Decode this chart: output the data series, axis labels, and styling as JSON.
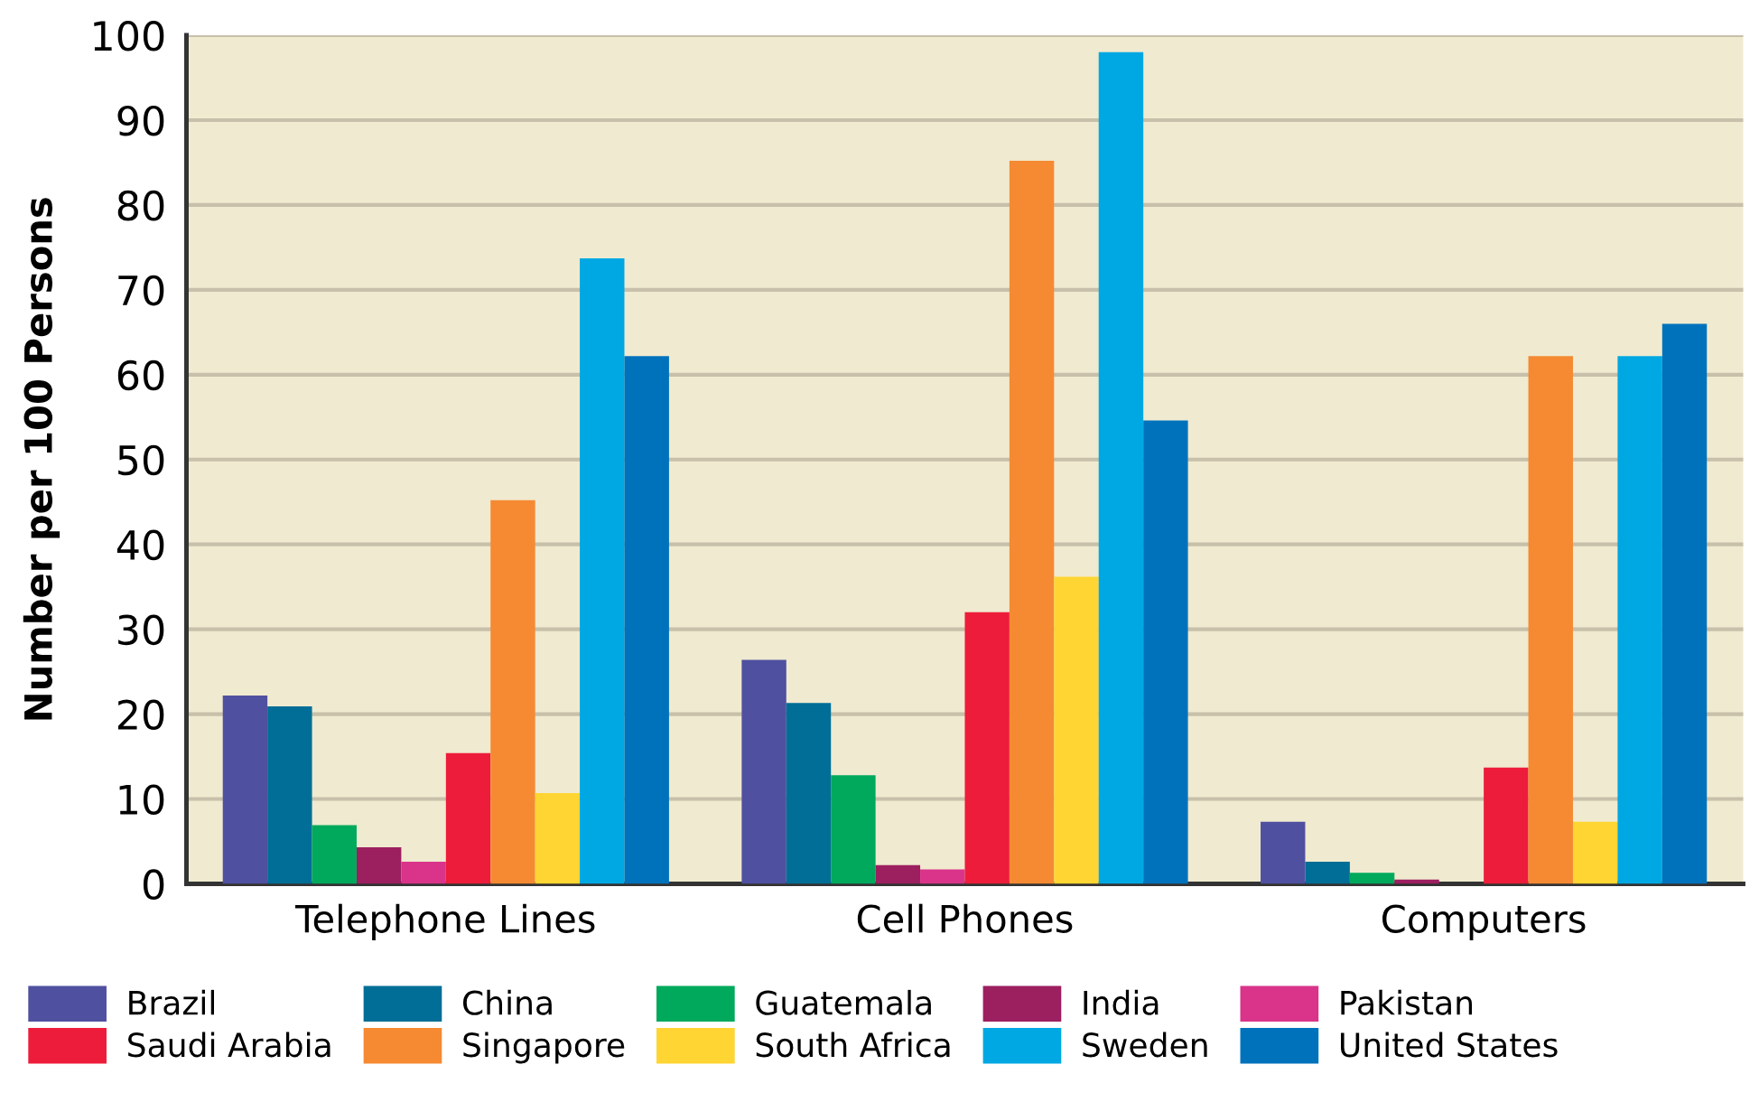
{
  "chart_data": {
    "type": "bar",
    "ylabel": "Number per 100 Persons",
    "categories": [
      "Telephone Lines",
      "Cell Phones",
      "Computers"
    ],
    "series": [
      {
        "name": "Brazil",
        "color": "#5050a0",
        "values": [
          22.2,
          26.4,
          7.3
        ]
      },
      {
        "name": "China",
        "color": "#006e96",
        "values": [
          20.9,
          21.3,
          2.6
        ]
      },
      {
        "name": "Guatemala",
        "color": "#00a95c",
        "values": [
          6.9,
          12.8,
          1.3
        ]
      },
      {
        "name": "India",
        "color": "#9c1f60",
        "values": [
          4.3,
          2.2,
          0.5
        ]
      },
      {
        "name": "Pakistan",
        "color": "#d9348a",
        "values": [
          2.6,
          1.7,
          0
        ]
      },
      {
        "name": "Saudi Arabia",
        "color": "#ed1c3a",
        "values": [
          15.4,
          32.0,
          13.7
        ]
      },
      {
        "name": "Singapore",
        "color": "#f58a33",
        "values": [
          45.2,
          85.2,
          62.2
        ]
      },
      {
        "name": "South Africa",
        "color": "#ffd533",
        "values": [
          10.7,
          36.2,
          7.3
        ]
      },
      {
        "name": "Sweden",
        "color": "#00a8e3",
        "values": [
          73.7,
          98.0,
          62.2
        ]
      },
      {
        "name": "United States",
        "color": "#0072bc",
        "values": [
          62.2,
          54.6,
          66.0
        ]
      }
    ],
    "ylim": [
      0,
      100
    ],
    "yticks": [
      0,
      10,
      20,
      30,
      40,
      50,
      60,
      70,
      80,
      90,
      100
    ],
    "grid": "y",
    "legend": "bottom"
  }
}
